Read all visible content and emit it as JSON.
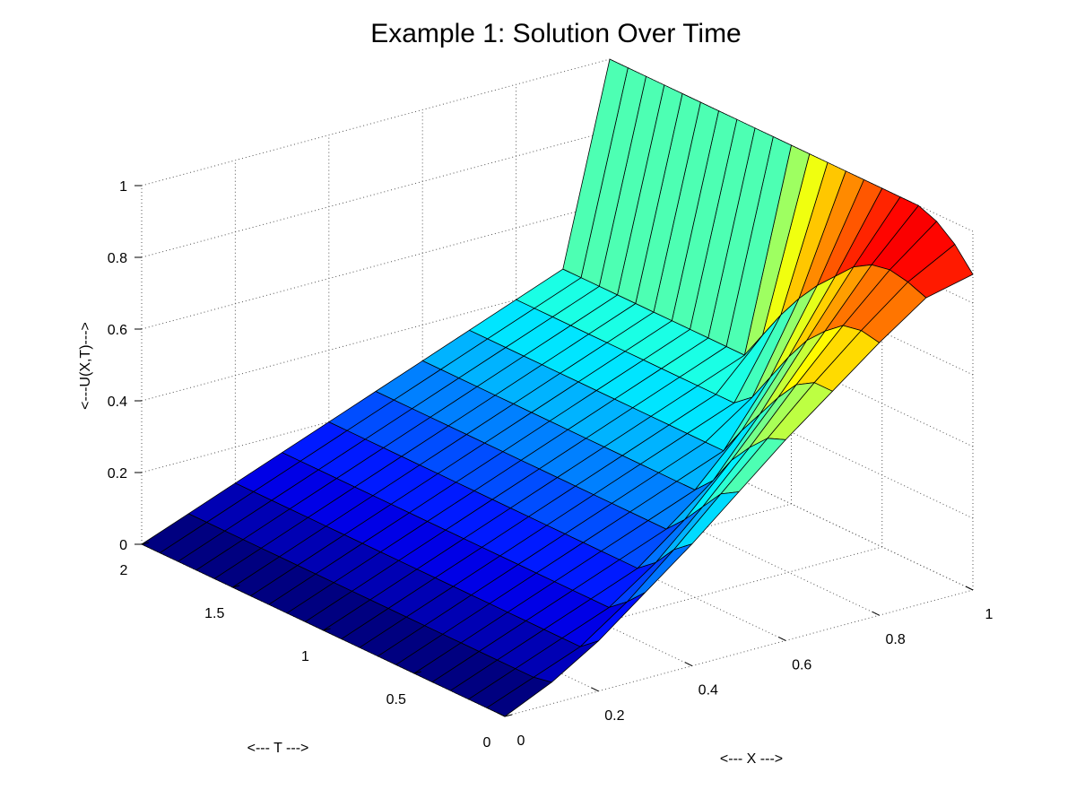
{
  "chart_data": {
    "type": "surface",
    "title": "Example 1: Solution Over Time",
    "xlabel": "<--- X --->",
    "ylabel": "<--- T --->",
    "zlabel": "<---U(X,T)--->",
    "xlim": [
      0,
      1
    ],
    "ylim": [
      0,
      2
    ],
    "zlim": [
      0,
      1
    ],
    "x_ticks": [
      "0",
      "0.2",
      "0.4",
      "0.6",
      "0.8",
      "1"
    ],
    "y_ticks": [
      "0",
      "0.5",
      "1",
      "1.5",
      "2"
    ],
    "z_ticks": [
      "0",
      "0.2",
      "0.4",
      "0.6",
      "0.8",
      "1"
    ],
    "grid": true,
    "colormap": "jet",
    "x": [
      0,
      0.1,
      0.2,
      0.3,
      0.4,
      0.5,
      0.6,
      0.7,
      0.8,
      0.9,
      1.0
    ],
    "t": [
      0,
      0.1,
      0.2,
      0.3,
      0.4,
      0.5,
      0.6,
      0.7,
      0.8,
      0.9,
      1.0,
      1.1,
      1.2,
      1.3,
      1.4,
      1.5,
      1.6,
      1.7,
      1.8,
      1.9,
      2.0
    ],
    "u": [
      [
        0.0,
        0.06,
        0.14,
        0.24,
        0.34,
        0.45,
        0.56,
        0.66,
        0.76,
        0.85,
        0.88
      ],
      [
        0.0,
        0.05,
        0.1,
        0.19,
        0.3,
        0.42,
        0.54,
        0.66,
        0.77,
        0.87,
        0.94
      ],
      [
        0.0,
        0.05,
        0.1,
        0.15,
        0.24,
        0.36,
        0.49,
        0.63,
        0.76,
        0.88,
        0.98
      ],
      [
        0.0,
        0.05,
        0.1,
        0.15,
        0.2,
        0.3,
        0.43,
        0.57,
        0.72,
        0.87,
        1.0
      ],
      [
        0.0,
        0.05,
        0.1,
        0.15,
        0.2,
        0.25,
        0.35,
        0.5,
        0.67,
        0.84,
        1.0
      ],
      [
        0.0,
        0.05,
        0.1,
        0.15,
        0.2,
        0.25,
        0.3,
        0.43,
        0.6,
        0.79,
        1.0
      ],
      [
        0.0,
        0.05,
        0.1,
        0.15,
        0.2,
        0.25,
        0.3,
        0.35,
        0.52,
        0.74,
        1.0
      ],
      [
        0.0,
        0.05,
        0.1,
        0.15,
        0.2,
        0.25,
        0.3,
        0.35,
        0.44,
        0.68,
        1.0
      ],
      [
        0.0,
        0.05,
        0.1,
        0.15,
        0.2,
        0.25,
        0.3,
        0.35,
        0.4,
        0.61,
        1.0
      ],
      [
        0.0,
        0.05,
        0.1,
        0.15,
        0.2,
        0.25,
        0.3,
        0.35,
        0.4,
        0.53,
        1.0
      ],
      [
        0.0,
        0.05,
        0.1,
        0.15,
        0.2,
        0.25,
        0.3,
        0.35,
        0.4,
        0.45,
        1.0
      ],
      [
        0.0,
        0.05,
        0.1,
        0.15,
        0.2,
        0.25,
        0.3,
        0.35,
        0.4,
        0.45,
        1.0
      ],
      [
        0.0,
        0.05,
        0.1,
        0.15,
        0.2,
        0.25,
        0.3,
        0.35,
        0.4,
        0.45,
        1.0
      ],
      [
        0.0,
        0.05,
        0.1,
        0.15,
        0.2,
        0.25,
        0.3,
        0.35,
        0.4,
        0.45,
        1.0
      ],
      [
        0.0,
        0.05,
        0.1,
        0.15,
        0.2,
        0.25,
        0.3,
        0.35,
        0.4,
        0.45,
        1.0
      ],
      [
        0.0,
        0.05,
        0.1,
        0.15,
        0.2,
        0.25,
        0.3,
        0.35,
        0.4,
        0.45,
        1.0
      ],
      [
        0.0,
        0.05,
        0.1,
        0.15,
        0.2,
        0.25,
        0.3,
        0.35,
        0.4,
        0.45,
        1.0
      ],
      [
        0.0,
        0.05,
        0.1,
        0.15,
        0.2,
        0.25,
        0.3,
        0.35,
        0.4,
        0.45,
        1.0
      ],
      [
        0.0,
        0.05,
        0.1,
        0.15,
        0.2,
        0.25,
        0.3,
        0.35,
        0.4,
        0.45,
        1.0
      ],
      [
        0.0,
        0.05,
        0.1,
        0.15,
        0.2,
        0.25,
        0.3,
        0.35,
        0.4,
        0.45,
        1.0
      ],
      [
        0.0,
        0.05,
        0.1,
        0.15,
        0.2,
        0.25,
        0.3,
        0.35,
        0.4,
        0.45,
        1.0
      ]
    ]
  }
}
